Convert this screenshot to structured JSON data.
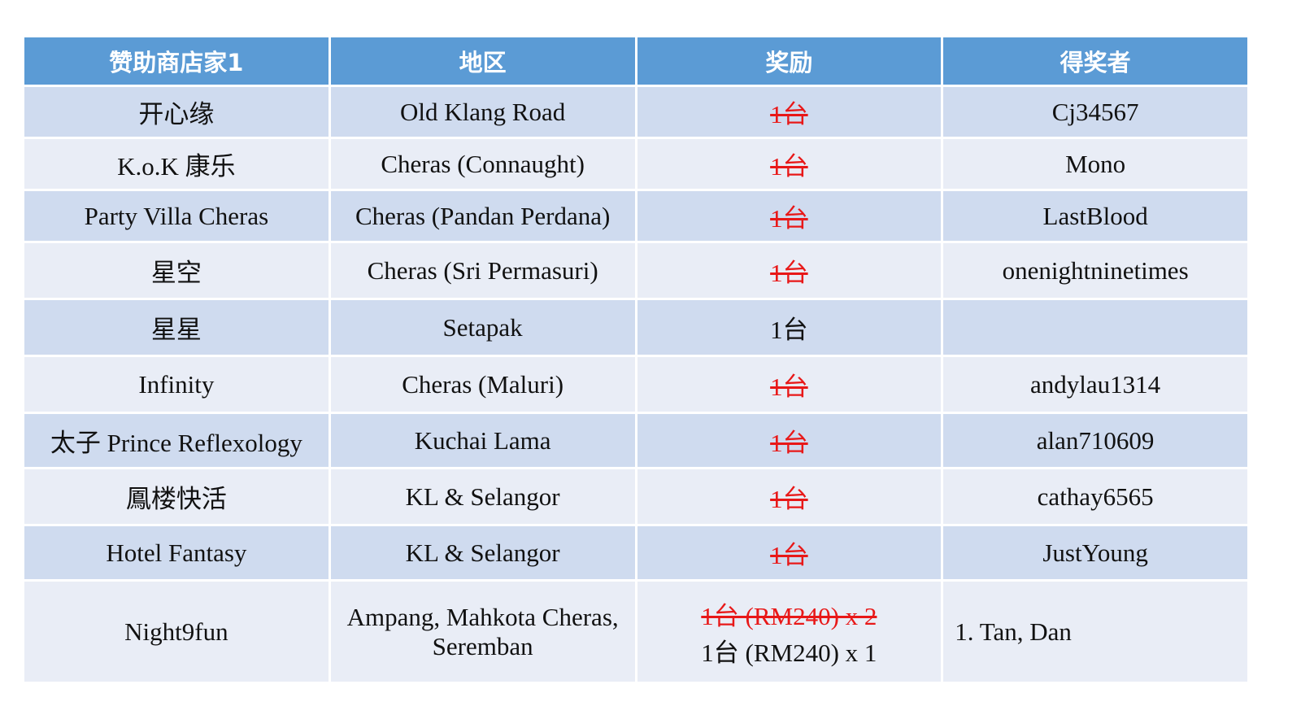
{
  "headers": [
    "赞助商店家1",
    "地区",
    "奖励",
    "得奖者"
  ],
  "rows": [
    {
      "shop": "开心缘",
      "area": "Old Klang Road",
      "reward": "1台",
      "reward_struck": true,
      "winner": "Cj34567"
    },
    {
      "shop": "K.o.K 康乐",
      "area": "Cheras (Connaught)",
      "reward": "1台",
      "reward_struck": true,
      "winner": "Mono"
    },
    {
      "shop": "Party Villa Cheras",
      "area": "Cheras (Pandan Perdana)",
      "reward": "1台",
      "reward_struck": true,
      "winner": "LastBlood"
    },
    {
      "shop": "星空",
      "area": "Cheras (Sri Permasuri)",
      "reward": "1台",
      "reward_struck": true,
      "winner": "onenightninetimes"
    },
    {
      "shop": "星星",
      "area": "Setapak",
      "reward": "1台",
      "reward_struck": false,
      "winner": ""
    },
    {
      "shop": "Infinity",
      "area": "Cheras (Maluri)",
      "reward": "1台",
      "reward_struck": true,
      "winner": "andylau1314"
    },
    {
      "shop": "太子 Prince Reflexology",
      "area": "Kuchai Lama",
      "reward": "1台",
      "reward_struck": true,
      "winner": "alan710609"
    },
    {
      "shop": "鳳楼快活",
      "area": "KL & Selangor",
      "reward": "1台",
      "reward_struck": true,
      "winner": "cathay6565"
    },
    {
      "shop": "Hotel Fantasy",
      "area": "KL & Selangor",
      "reward": "1台",
      "reward_struck": true,
      "winner": "JustYoung"
    }
  ],
  "last_row": {
    "shop": "Night9fun",
    "area_line1": "Ampang, Mahkota Cheras,",
    "area_line2": "Seremban",
    "reward_struck": "1台 (RM240) x 2",
    "reward_current": "1台 (RM240) x 1",
    "winner": "1. Tan, Dan"
  },
  "colors": {
    "header": "#5b9bd5",
    "row_odd": "#cfdbef",
    "row_even": "#e9edf6",
    "struck_text": "#e81818"
  }
}
